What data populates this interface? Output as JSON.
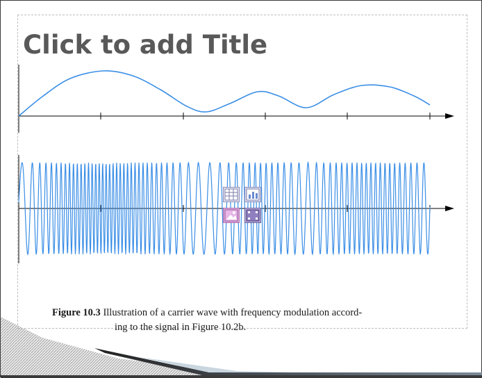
{
  "slide": {
    "title_placeholder": "Click to add Title"
  },
  "figure": {
    "caption_label": "Figure 10.3",
    "caption_line1": " Illustration of a carrier wave with frequency modulation accord-",
    "caption_line2": "ing to the signal in Figure 10.2b."
  },
  "content_icons": [
    "table-icon",
    "chart-icon",
    "picture-icon",
    "media-icon"
  ],
  "colors": {
    "wave": "#3a8ee6",
    "title": "#595959",
    "axis": "#000000"
  }
}
